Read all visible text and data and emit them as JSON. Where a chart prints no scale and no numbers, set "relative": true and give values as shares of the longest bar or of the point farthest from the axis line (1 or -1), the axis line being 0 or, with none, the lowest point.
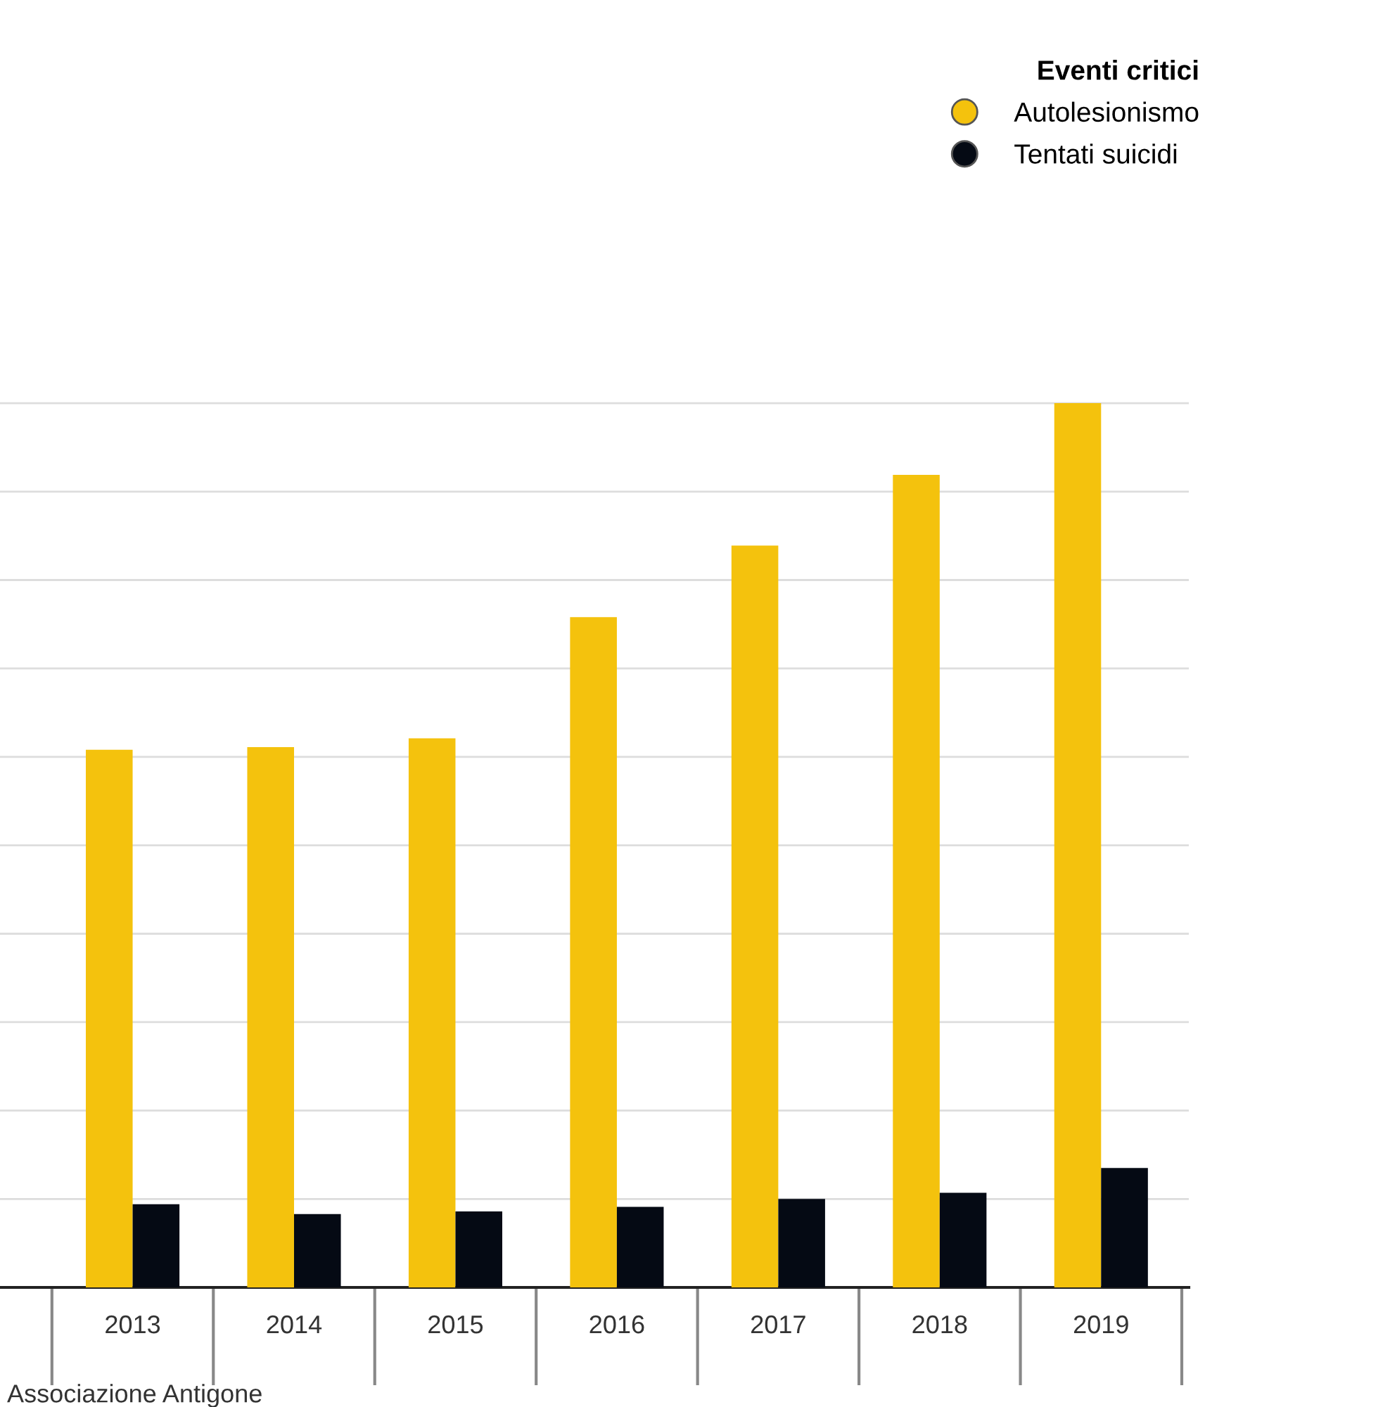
{
  "chart_data": {
    "type": "bar",
    "relative": true,
    "categories": [
      "2013",
      "2014",
      "2015",
      "2016",
      "2017",
      "2018",
      "2019"
    ],
    "series": [
      {
        "name": "Autolesionismo",
        "color": "#f4c20d",
        "values": [
          0.608,
          0.611,
          0.621,
          0.758,
          0.839,
          0.919,
          1
        ]
      },
      {
        "name": "Tentati suicidi",
        "color": "#050a14",
        "values": [
          0.094,
          0.083,
          0.086,
          0.091,
          0.1,
          0.107,
          0.135
        ]
      }
    ],
    "legend_title": "Eventi critici",
    "legend": "top right",
    "grid": "y",
    "marker": "circle",
    "annotations": [
      "Associazione Antigone"
    ]
  }
}
